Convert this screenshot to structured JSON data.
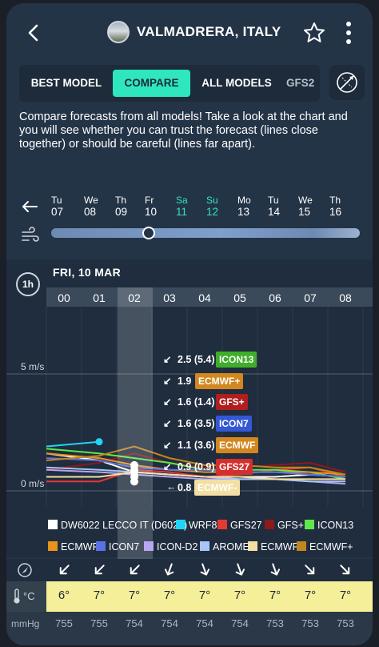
{
  "header": {
    "title": "VALMADRERA, ITALY",
    "back_icon": "arrow-left-icon",
    "star_icon": "star-icon",
    "more_icon": "more-vertical-icon"
  },
  "tabs": [
    {
      "label": "BEST MODEL",
      "active": false
    },
    {
      "label": "COMPARE",
      "active": true
    },
    {
      "label": "ALL MODELS",
      "active": false
    },
    {
      "label": "GFS2",
      "active": false
    }
  ],
  "description": "Compare forecasts from all models! Take a look at the chart and you will see whether you can trust the forecast (lines close together) or should be careful (lines far apart).",
  "days": [
    {
      "dow": "Tu",
      "num": "07",
      "weekend": false
    },
    {
      "dow": "We",
      "num": "08",
      "weekend": false
    },
    {
      "dow": "Th",
      "num": "09",
      "weekend": false
    },
    {
      "dow": "Fr",
      "num": "10",
      "weekend": false
    },
    {
      "dow": "Sa",
      "num": "11",
      "weekend": true
    },
    {
      "dow": "Su",
      "num": "12",
      "weekend": true
    },
    {
      "dow": "Mo",
      "num": "13",
      "weekend": false
    },
    {
      "dow": "Tu",
      "num": "14",
      "weekend": false
    },
    {
      "dow": "We",
      "num": "15",
      "weekend": false
    },
    {
      "dow": "Th",
      "num": "16",
      "weekend": false
    }
  ],
  "interval_label": "1h",
  "date_label": "FRI, 10 MAR",
  "hours": [
    "00",
    "01",
    "02",
    "03",
    "04",
    "05",
    "06",
    "07",
    "08"
  ],
  "chart_data": {
    "type": "line",
    "x": [
      "00",
      "01",
      "02",
      "03",
      "04",
      "05",
      "06",
      "07",
      "08"
    ],
    "ylabel_ticks": [
      "5 m/s",
      "0 m/s"
    ],
    "ylim": [
      0,
      8
    ],
    "series": [
      {
        "name": "DW6022 LECCO IT (D6022)",
        "color": "#ffffff",
        "values": [
          1.6,
          1.3,
          0.8,
          0.7,
          0.6,
          0.6,
          0.6,
          0.7,
          0.6
        ]
      },
      {
        "name": "WRF8",
        "color": "#22d3f5",
        "values": [
          1.9,
          2.1,
          null,
          null,
          null,
          null,
          null,
          null,
          null
        ]
      },
      {
        "name": "GFS27",
        "color": "#e53935",
        "values": [
          0.4,
          0.4,
          0.9,
          0.8,
          0.6,
          0.7,
          0.9,
          1.0,
          0.6
        ]
      },
      {
        "name": "GFS+",
        "color": "#8b1a1a",
        "values": [
          0.9,
          1.2,
          1.6,
          1.2,
          1.0,
          1.0,
          1.1,
          1.2,
          0.8
        ]
      },
      {
        "name": "ICON13",
        "color": "#5ee84b",
        "values": [
          1.8,
          1.6,
          1.4,
          1.2,
          0.9,
          0.9,
          0.9,
          0.8,
          0.5
        ]
      },
      {
        "name": "ECMWF",
        "color": "#e8931c",
        "values": [
          1.6,
          1.4,
          1.1,
          0.9,
          0.8,
          0.8,
          0.8,
          0.8,
          0.7
        ]
      },
      {
        "name": "ICON7",
        "color": "#5a72e6",
        "values": [
          1.4,
          1.3,
          1.0,
          0.9,
          0.9,
          0.8,
          0.8,
          0.7,
          0.6
        ]
      },
      {
        "name": "ICON-D2",
        "color": "#b7a6f0",
        "values": [
          0.9,
          0.8,
          0.7,
          0.6,
          0.5,
          0.5,
          0.5,
          0.4,
          0.3
        ]
      },
      {
        "name": "AROME",
        "color": "#a9c4f5",
        "values": [
          1.0,
          0.9,
          0.8,
          0.7,
          0.6,
          0.5,
          0.5,
          0.4,
          0.4
        ]
      },
      {
        "name": "ECMWF-",
        "color": "#f3dfa3",
        "values": [
          0.6,
          0.6,
          0.8,
          0.7,
          0.6,
          0.6,
          0.5,
          0.5,
          0.5
        ]
      },
      {
        "name": "ECMWF+",
        "color": "#c1861f",
        "values": [
          1.3,
          1.5,
          1.9,
          1.4,
          1.1,
          1.1,
          1.0,
          1.0,
          0.7
        ]
      }
    ],
    "annotations": [
      {
        "text": "2.5 (5.4)",
        "model": "ICON13",
        "color": "#3fae2a"
      },
      {
        "text": "1.9",
        "model": "ECMWF+",
        "color": "#d2871f"
      },
      {
        "text": "1.6 (1.4)",
        "model": "GFS+",
        "color": "#b01e1e"
      },
      {
        "text": "1.6 (3.5)",
        "model": "ICON7",
        "color": "#3457d6"
      },
      {
        "text": "1.1 (3.6)",
        "model": "ECMWF",
        "color": "#d2871f"
      },
      {
        "text": "0.9 (0.9)",
        "model": "GFS27",
        "color": "#d32f2f"
      },
      {
        "text": "0.8",
        "model": "ECMWF-",
        "color": "#f3dfa3"
      }
    ]
  },
  "legend": [
    {
      "label": "DW6022 LECCO IT (D6022)",
      "color": "#ffffff"
    },
    {
      "label": "WRF8",
      "color": "#22d3f5"
    },
    {
      "label": "GFS27",
      "color": "#e53935"
    },
    {
      "label": "GFS+",
      "color": "#8b1a1a"
    },
    {
      "label": "ICON13",
      "color": "#5ee84b"
    },
    {
      "label": "ECMWF",
      "color": "#e8931c"
    },
    {
      "label": "ICON7",
      "color": "#5a72e6"
    },
    {
      "label": "ICON-D2",
      "color": "#b7a6f0"
    },
    {
      "label": "AROME",
      "color": "#a9c4f5"
    },
    {
      "label": "ECMWF-",
      "color": "#f3dfa3"
    },
    {
      "label": "ECMWF+",
      "color": "#c1861f"
    }
  ],
  "rows": {
    "temp_unit": "°C",
    "pressure_unit": "mmHg",
    "directions_deg": [
      225,
      225,
      225,
      200,
      160,
      160,
      160,
      135,
      135
    ],
    "temps": [
      "6°",
      "7°",
      "7°",
      "7°",
      "7°",
      "7°",
      "7°",
      "7°",
      "7°"
    ],
    "pressure": [
      "755",
      "755",
      "754",
      "754",
      "754",
      "754",
      "753",
      "753",
      "753"
    ]
  }
}
